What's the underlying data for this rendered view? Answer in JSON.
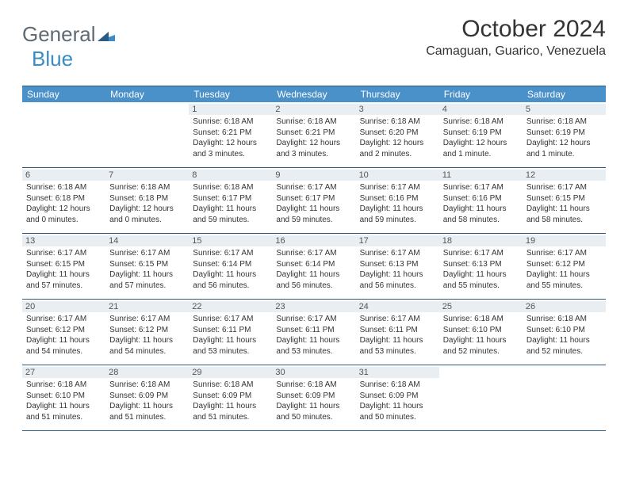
{
  "brand": {
    "word1": "General",
    "word2": "Blue"
  },
  "title": "October 2024",
  "location": "Camaguan, Guarico, Venezuela",
  "colors": {
    "header_bg": "#4a90c9",
    "header_text": "#ffffff",
    "border": "#2d5a82",
    "day_num_bg": "#e9eef2",
    "logo_gray": "#5f6a72",
    "logo_blue": "#3a8dc4"
  },
  "day_names": [
    "Sunday",
    "Monday",
    "Tuesday",
    "Wednesday",
    "Thursday",
    "Friday",
    "Saturday"
  ],
  "weeks": [
    [
      null,
      null,
      {
        "n": "1",
        "sr": "Sunrise: 6:18 AM",
        "ss": "Sunset: 6:21 PM",
        "dl": "Daylight: 12 hours and 3 minutes."
      },
      {
        "n": "2",
        "sr": "Sunrise: 6:18 AM",
        "ss": "Sunset: 6:21 PM",
        "dl": "Daylight: 12 hours and 3 minutes."
      },
      {
        "n": "3",
        "sr": "Sunrise: 6:18 AM",
        "ss": "Sunset: 6:20 PM",
        "dl": "Daylight: 12 hours and 2 minutes."
      },
      {
        "n": "4",
        "sr": "Sunrise: 6:18 AM",
        "ss": "Sunset: 6:19 PM",
        "dl": "Daylight: 12 hours and 1 minute."
      },
      {
        "n": "5",
        "sr": "Sunrise: 6:18 AM",
        "ss": "Sunset: 6:19 PM",
        "dl": "Daylight: 12 hours and 1 minute."
      }
    ],
    [
      {
        "n": "6",
        "sr": "Sunrise: 6:18 AM",
        "ss": "Sunset: 6:18 PM",
        "dl": "Daylight: 12 hours and 0 minutes."
      },
      {
        "n": "7",
        "sr": "Sunrise: 6:18 AM",
        "ss": "Sunset: 6:18 PM",
        "dl": "Daylight: 12 hours and 0 minutes."
      },
      {
        "n": "8",
        "sr": "Sunrise: 6:18 AM",
        "ss": "Sunset: 6:17 PM",
        "dl": "Daylight: 11 hours and 59 minutes."
      },
      {
        "n": "9",
        "sr": "Sunrise: 6:17 AM",
        "ss": "Sunset: 6:17 PM",
        "dl": "Daylight: 11 hours and 59 minutes."
      },
      {
        "n": "10",
        "sr": "Sunrise: 6:17 AM",
        "ss": "Sunset: 6:16 PM",
        "dl": "Daylight: 11 hours and 59 minutes."
      },
      {
        "n": "11",
        "sr": "Sunrise: 6:17 AM",
        "ss": "Sunset: 6:16 PM",
        "dl": "Daylight: 11 hours and 58 minutes."
      },
      {
        "n": "12",
        "sr": "Sunrise: 6:17 AM",
        "ss": "Sunset: 6:15 PM",
        "dl": "Daylight: 11 hours and 58 minutes."
      }
    ],
    [
      {
        "n": "13",
        "sr": "Sunrise: 6:17 AM",
        "ss": "Sunset: 6:15 PM",
        "dl": "Daylight: 11 hours and 57 minutes."
      },
      {
        "n": "14",
        "sr": "Sunrise: 6:17 AM",
        "ss": "Sunset: 6:15 PM",
        "dl": "Daylight: 11 hours and 57 minutes."
      },
      {
        "n": "15",
        "sr": "Sunrise: 6:17 AM",
        "ss": "Sunset: 6:14 PM",
        "dl": "Daylight: 11 hours and 56 minutes."
      },
      {
        "n": "16",
        "sr": "Sunrise: 6:17 AM",
        "ss": "Sunset: 6:14 PM",
        "dl": "Daylight: 11 hours and 56 minutes."
      },
      {
        "n": "17",
        "sr": "Sunrise: 6:17 AM",
        "ss": "Sunset: 6:13 PM",
        "dl": "Daylight: 11 hours and 56 minutes."
      },
      {
        "n": "18",
        "sr": "Sunrise: 6:17 AM",
        "ss": "Sunset: 6:13 PM",
        "dl": "Daylight: 11 hours and 55 minutes."
      },
      {
        "n": "19",
        "sr": "Sunrise: 6:17 AM",
        "ss": "Sunset: 6:12 PM",
        "dl": "Daylight: 11 hours and 55 minutes."
      }
    ],
    [
      {
        "n": "20",
        "sr": "Sunrise: 6:17 AM",
        "ss": "Sunset: 6:12 PM",
        "dl": "Daylight: 11 hours and 54 minutes."
      },
      {
        "n": "21",
        "sr": "Sunrise: 6:17 AM",
        "ss": "Sunset: 6:12 PM",
        "dl": "Daylight: 11 hours and 54 minutes."
      },
      {
        "n": "22",
        "sr": "Sunrise: 6:17 AM",
        "ss": "Sunset: 6:11 PM",
        "dl": "Daylight: 11 hours and 53 minutes."
      },
      {
        "n": "23",
        "sr": "Sunrise: 6:17 AM",
        "ss": "Sunset: 6:11 PM",
        "dl": "Daylight: 11 hours and 53 minutes."
      },
      {
        "n": "24",
        "sr": "Sunrise: 6:17 AM",
        "ss": "Sunset: 6:11 PM",
        "dl": "Daylight: 11 hours and 53 minutes."
      },
      {
        "n": "25",
        "sr": "Sunrise: 6:18 AM",
        "ss": "Sunset: 6:10 PM",
        "dl": "Daylight: 11 hours and 52 minutes."
      },
      {
        "n": "26",
        "sr": "Sunrise: 6:18 AM",
        "ss": "Sunset: 6:10 PM",
        "dl": "Daylight: 11 hours and 52 minutes."
      }
    ],
    [
      {
        "n": "27",
        "sr": "Sunrise: 6:18 AM",
        "ss": "Sunset: 6:10 PM",
        "dl": "Daylight: 11 hours and 51 minutes."
      },
      {
        "n": "28",
        "sr": "Sunrise: 6:18 AM",
        "ss": "Sunset: 6:09 PM",
        "dl": "Daylight: 11 hours and 51 minutes."
      },
      {
        "n": "29",
        "sr": "Sunrise: 6:18 AM",
        "ss": "Sunset: 6:09 PM",
        "dl": "Daylight: 11 hours and 51 minutes."
      },
      {
        "n": "30",
        "sr": "Sunrise: 6:18 AM",
        "ss": "Sunset: 6:09 PM",
        "dl": "Daylight: 11 hours and 50 minutes."
      },
      {
        "n": "31",
        "sr": "Sunrise: 6:18 AM",
        "ss": "Sunset: 6:09 PM",
        "dl": "Daylight: 11 hours and 50 minutes."
      },
      null,
      null
    ]
  ]
}
